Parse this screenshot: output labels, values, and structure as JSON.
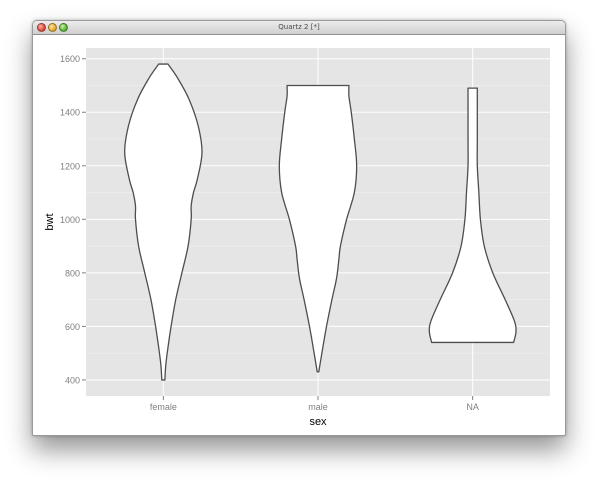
{
  "window": {
    "title": "Quartz 2 [*]"
  },
  "chart_data": {
    "type": "violin",
    "title": "",
    "xlabel": "sex",
    "ylabel": "bwt",
    "categories": [
      "female",
      "male",
      "NA"
    ],
    "yticks": [
      400,
      600,
      800,
      1000,
      1200,
      1400,
      1600
    ],
    "ylim": [
      340,
      1640
    ],
    "grid": true,
    "background_color": "#e5e5e5",
    "grid_color": "#ffffff",
    "fill_color": "#ffffff",
    "outline_color": "#4d4d4d",
    "violins": [
      {
        "category": "female",
        "min": 400,
        "max": 1580,
        "profile": [
          [
            400,
            0.02
          ],
          [
            450,
            0.03
          ],
          [
            500,
            0.05
          ],
          [
            600,
            0.1
          ],
          [
            700,
            0.16
          ],
          [
            800,
            0.24
          ],
          [
            900,
            0.32
          ],
          [
            1000,
            0.36
          ],
          [
            1050,
            0.36
          ],
          [
            1100,
            0.39
          ],
          [
            1150,
            0.44
          ],
          [
            1250,
            0.5
          ],
          [
            1350,
            0.45
          ],
          [
            1450,
            0.33
          ],
          [
            1530,
            0.18
          ],
          [
            1580,
            0.06
          ]
        ]
      },
      {
        "category": "male",
        "min": 430,
        "max": 1500,
        "profile": [
          [
            430,
            0.01
          ],
          [
            500,
            0.05
          ],
          [
            600,
            0.11
          ],
          [
            700,
            0.18
          ],
          [
            780,
            0.24
          ],
          [
            850,
            0.27
          ],
          [
            900,
            0.29
          ],
          [
            1000,
            0.37
          ],
          [
            1100,
            0.47
          ],
          [
            1200,
            0.5
          ],
          [
            1300,
            0.47
          ],
          [
            1400,
            0.43
          ],
          [
            1460,
            0.4
          ],
          [
            1500,
            0.4
          ]
        ]
      },
      {
        "category": "NA",
        "min": 540,
        "max": 1490,
        "profile": [
          [
            540,
            0.53
          ],
          [
            580,
            0.56
          ],
          [
            620,
            0.54
          ],
          [
            700,
            0.42
          ],
          [
            800,
            0.26
          ],
          [
            900,
            0.15
          ],
          [
            1000,
            0.1
          ],
          [
            1100,
            0.08
          ],
          [
            1200,
            0.06
          ],
          [
            1300,
            0.06
          ],
          [
            1400,
            0.06
          ],
          [
            1490,
            0.06
          ]
        ]
      }
    ]
  }
}
